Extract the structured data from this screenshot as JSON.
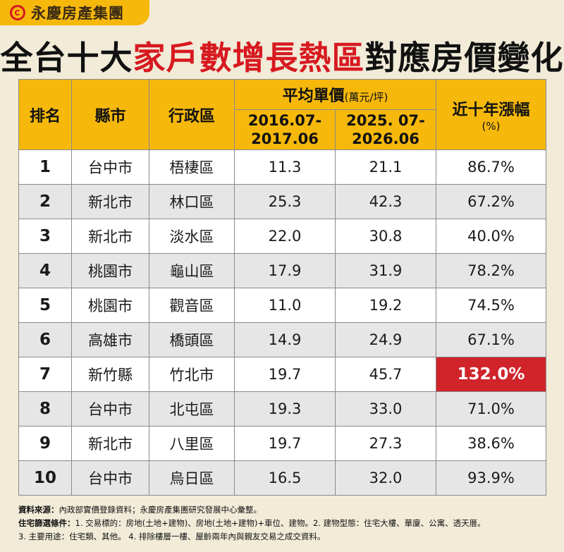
{
  "brand": {
    "name": "永慶房產集團"
  },
  "title": {
    "part1": "全台十大",
    "highlight": "家戶數增長熱區",
    "part2": "對應房價變化"
  },
  "table": {
    "headers": {
      "rank": "排名",
      "city": "縣市",
      "district": "行政區",
      "avg_price": "平均單價",
      "avg_price_unit": "(萬元/坪)",
      "period1": "2016.07-2017.06",
      "period1_line1": "2016.07-",
      "period1_line2": "2017.06",
      "period2_line1": "2025. 07-",
      "period2_line2": "2026.06",
      "growth": "近十年漲幅",
      "growth_unit": "(%)"
    },
    "rows": [
      {
        "rank": "1",
        "city": "台中市",
        "district": "梧棲區",
        "p1": "11.3",
        "p2": "21.1",
        "growth": "86.7%"
      },
      {
        "rank": "2",
        "city": "新北市",
        "district": "林口區",
        "p1": "25.3",
        "p2": "42.3",
        "growth": "67.2%"
      },
      {
        "rank": "3",
        "city": "新北市",
        "district": "淡水區",
        "p1": "22.0",
        "p2": "30.8",
        "growth": "40.0%"
      },
      {
        "rank": "4",
        "city": "桃園市",
        "district": "龜山區",
        "p1": "17.9",
        "p2": "31.9",
        "growth": "78.2%"
      },
      {
        "rank": "5",
        "city": "桃園市",
        "district": "觀音區",
        "p1": "11.0",
        "p2": "19.2",
        "growth": "74.5%"
      },
      {
        "rank": "6",
        "city": "高雄市",
        "district": "橋頭區",
        "p1": "14.9",
        "p2": "24.9",
        "growth": "67.1%"
      },
      {
        "rank": "7",
        "city": "新竹縣",
        "district": "竹北市",
        "p1": "19.7",
        "p2": "45.7",
        "growth": "132.0%"
      },
      {
        "rank": "8",
        "city": "台中市",
        "district": "北屯區",
        "p1": "19.3",
        "p2": "33.0",
        "growth": "71.0%"
      },
      {
        "rank": "9",
        "city": "新北市",
        "district": "八里區",
        "p1": "19.7",
        "p2": "27.3",
        "growth": "38.6%"
      },
      {
        "rank": "10",
        "city": "台中市",
        "district": "烏日區",
        "p1": "16.5",
        "p2": "32.0",
        "growth": "93.9%"
      }
    ]
  },
  "notes": {
    "source_label": "資料來源：",
    "source_text": "內政部實價登錄資料；永慶房產集團研究發展中心彙整。",
    "criteria_label": "住宅篩選條件：",
    "criteria_text1": "1. 交易標的：房地(土地+建物)、房地(土地+建物)+車位、建物。2. 建物型態：住宅大樓、華廈、公寓、透天厝。",
    "criteria_text2": "3. 主要用途：住宅類、其他。 4. 排除樓層一樓、屋齡兩年內與親友交易之成交資料。"
  },
  "colors": {
    "background": "#f1ebd8",
    "header_yellow": "#f6b80b",
    "accent_red": "#d71920",
    "highlight_cell": "#d0232a"
  }
}
